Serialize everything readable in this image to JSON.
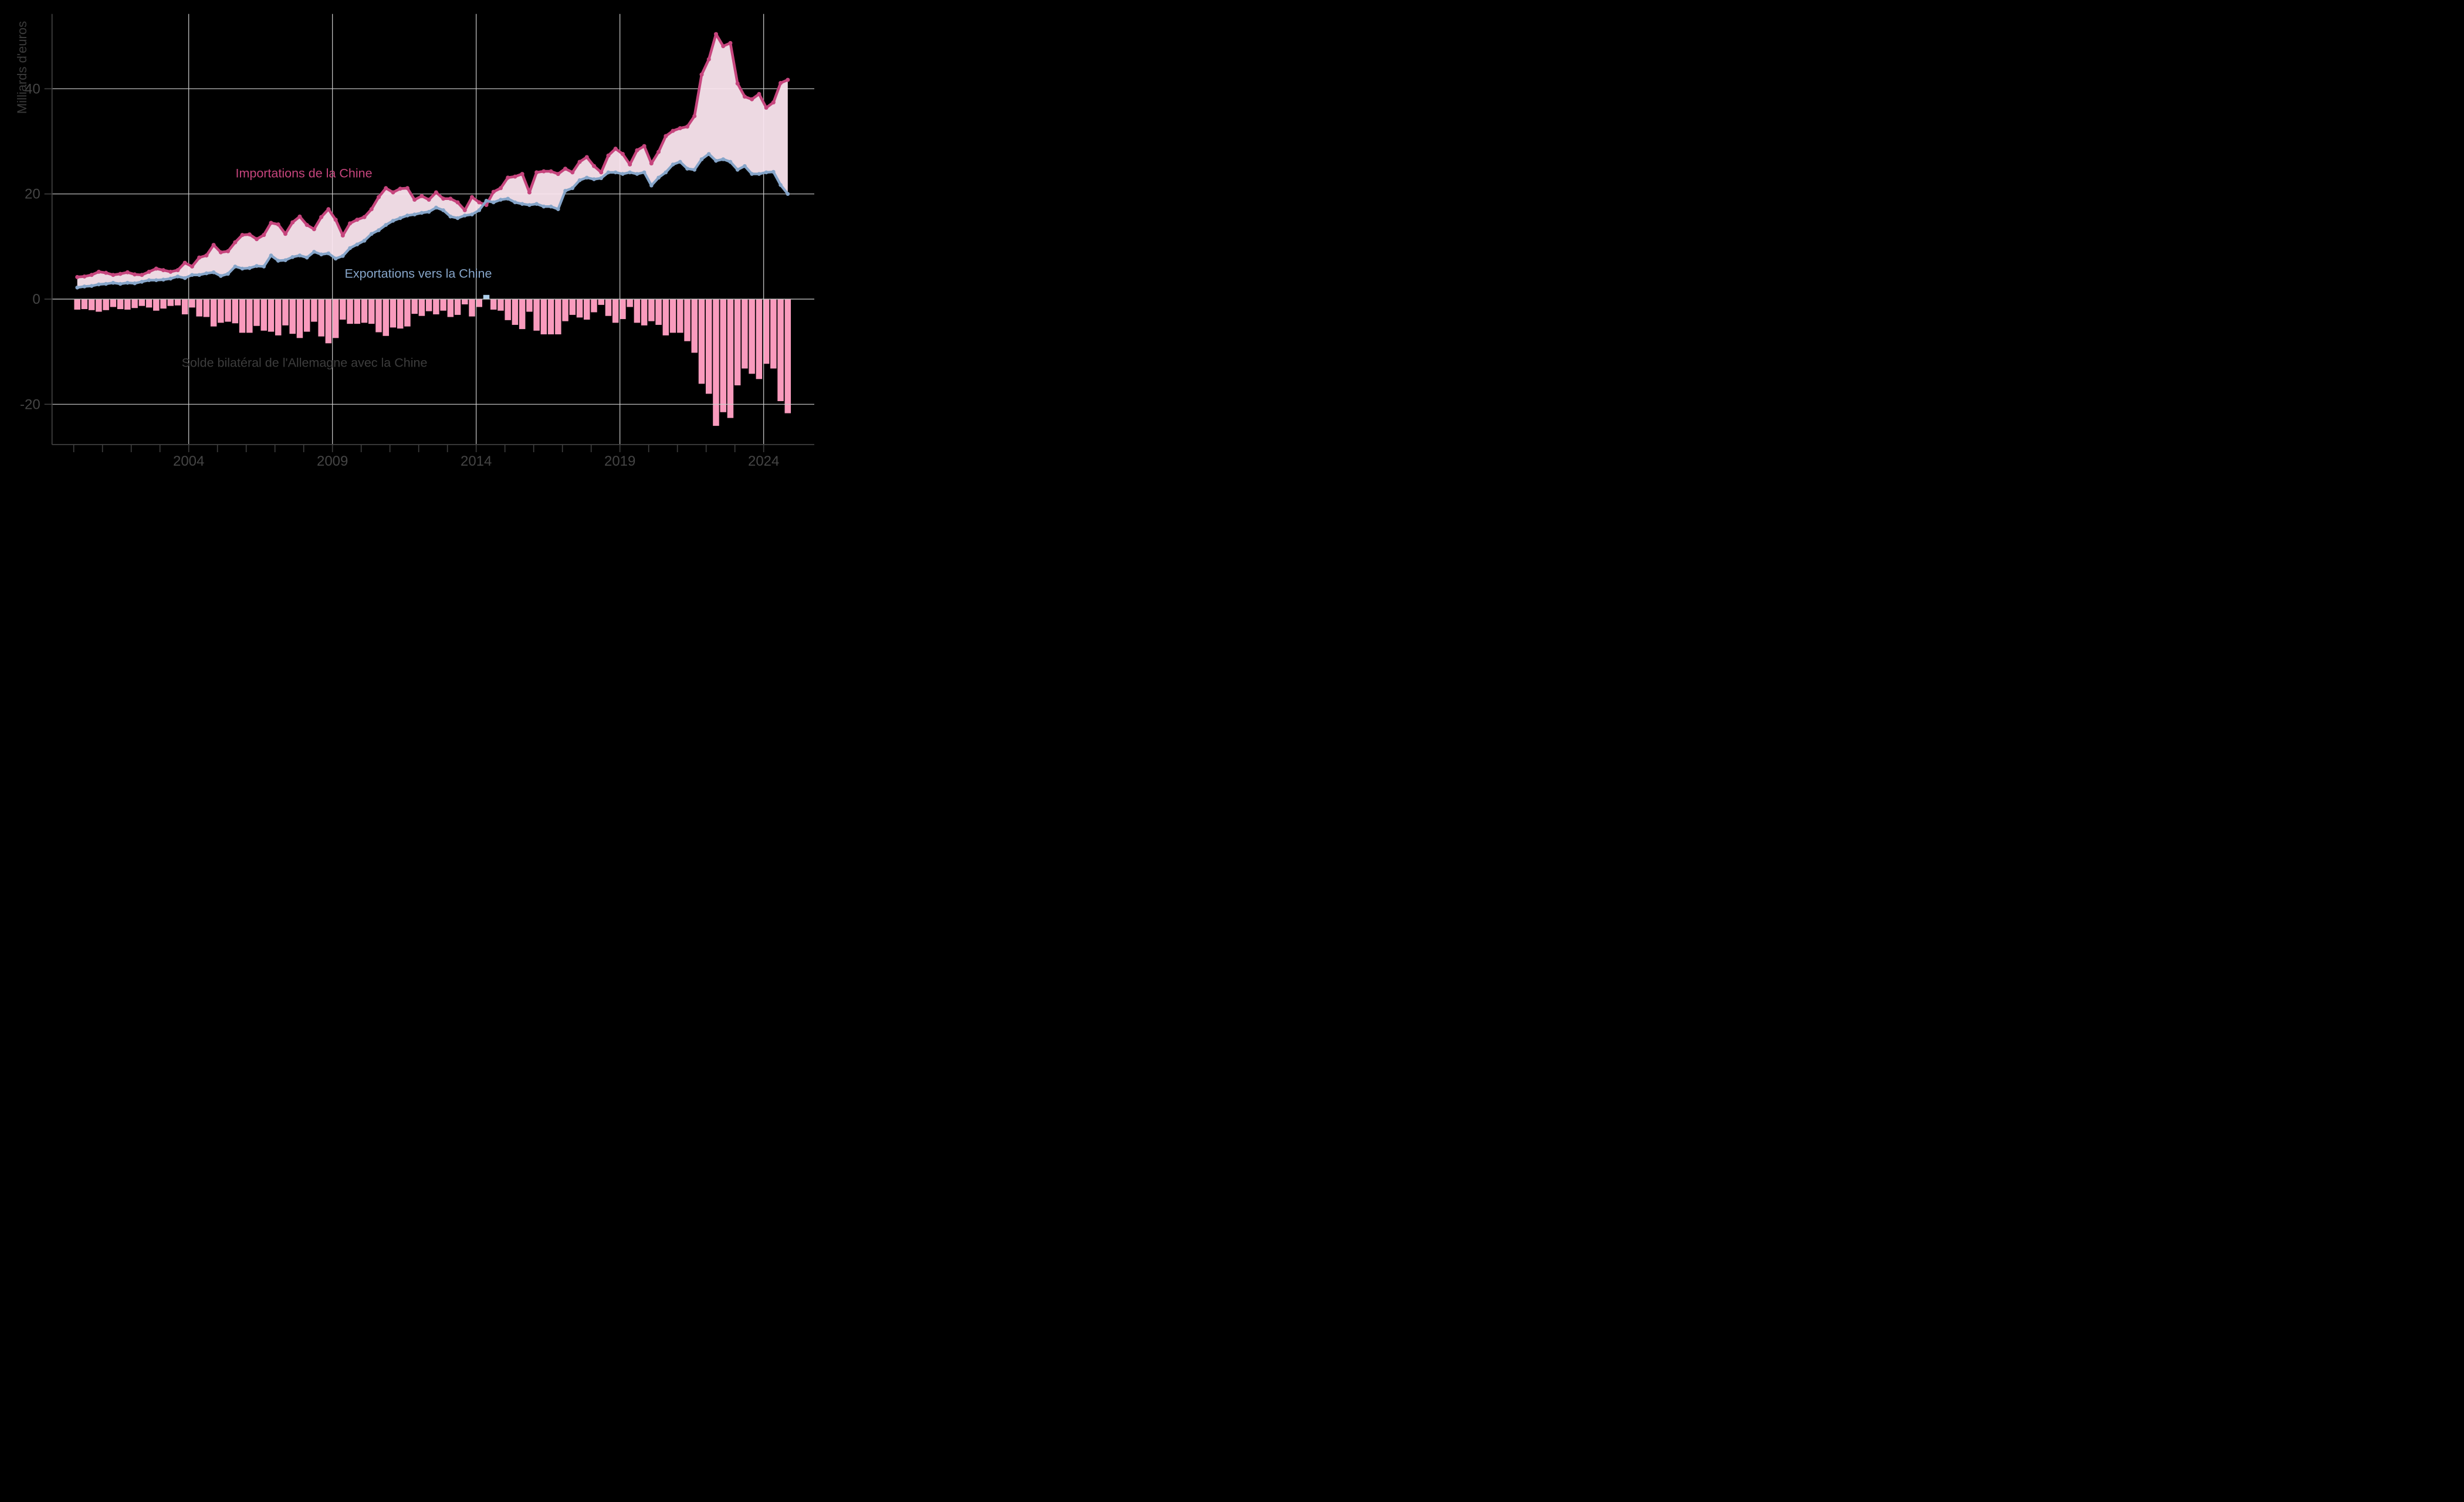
{
  "figure": {
    "background": "#000000",
    "grid_color": "#cfcfcf",
    "spine_color": "#3f3f3f",
    "tick_label_color": "#454545",
    "y_title": "Milliards d'euros",
    "y_title_color": "#3a3a3a"
  },
  "annotations": {
    "imports_label": "Importations de la Chine",
    "imports_color": "#c6457d",
    "exports_label": "Exportations vers la Chine",
    "exports_color": "#86a5c9",
    "solde_label": "Solde bilatéral de l'Allemagne avec la Chine",
    "solde_color": "#3d3d3d"
  },
  "chart_data": {
    "type": "line",
    "subtype": "two lines with shaded gap above, balance bars below zero",
    "unit": "Milliards d'euros",
    "frequency": "quarterly",
    "start_period": "2000Q1",
    "end_period": "2024Q4",
    "x_tick_years_labeled": [
      2004,
      2009,
      2014,
      2019,
      2024
    ],
    "x_tick_years_minor": [
      2000,
      2001,
      2002,
      2003,
      2004,
      2005,
      2006,
      2007,
      2008,
      2009,
      2010,
      2011,
      2012,
      2013,
      2014,
      2015,
      2016,
      2017,
      2018,
      2019,
      2020,
      2021,
      2022,
      2023,
      2024
    ],
    "ylim": [
      -27.7,
      54.2
    ],
    "y_ticks": [
      40,
      20,
      0,
      -20
    ],
    "y_tick_labels": [
      "40",
      "20",
      "0",
      "-20"
    ],
    "grid": true,
    "legend_position": "labels placed directly on chart",
    "series": [
      {
        "name": "Importations de la Chine",
        "color": "#c6457d",
        "point_color": "#c6457d",
        "values": [
          4.2,
          4.3,
          4.6,
          5.2,
          5.0,
          4.6,
          4.8,
          5.1,
          4.7,
          4.6,
          5.2,
          5.8,
          5.5,
          5.2,
          5.5,
          6.9,
          6.2,
          7.9,
          8.3,
          10.3,
          8.9,
          9.1,
          10.8,
          12.2,
          12.3,
          11.4,
          12.2,
          14.5,
          14.2,
          12.4,
          14.6,
          15.7,
          14.1,
          13.3,
          15.6,
          17.1,
          15.1,
          12.1,
          14.4,
          15.1,
          15.6,
          17.1,
          19.4,
          21.1,
          20.3,
          21.0,
          21.1,
          18.9,
          19.6,
          18.9,
          20.3,
          19.1,
          19.1,
          18.4,
          16.9,
          19.4,
          18.4,
          17.9,
          20.4,
          21.1,
          23.1,
          23.3,
          23.8,
          20.3,
          24.1,
          24.3,
          24.3,
          23.8,
          24.8,
          24.1,
          26.1,
          27.0,
          25.3,
          24.1,
          27.3,
          28.6,
          27.6,
          25.6,
          28.3,
          29.1,
          25.8,
          28.0,
          31.0,
          32.0,
          32.5,
          32.8,
          34.8,
          42.7,
          45.6,
          50.4,
          48.1,
          48.7,
          41.0,
          38.5,
          38.0,
          39.0,
          36.4,
          37.4,
          41.1,
          41.7
        ]
      },
      {
        "name": "Exportations vers la Chine",
        "color": "#86a5c9",
        "point_color": "#86a5c9",
        "values": [
          2.2,
          2.4,
          2.5,
          2.8,
          2.9,
          3.1,
          2.9,
          3.1,
          3.0,
          3.3,
          3.6,
          3.6,
          3.7,
          3.9,
          4.3,
          4.0,
          4.6,
          4.6,
          4.9,
          5.1,
          4.4,
          4.8,
          6.2,
          5.8,
          5.9,
          6.3,
          6.2,
          8.3,
          7.3,
          7.4,
          8.0,
          8.3,
          7.9,
          9.0,
          8.5,
          8.7,
          7.7,
          8.2,
          9.7,
          10.4,
          11.1,
          12.4,
          13.1,
          14.1,
          14.9,
          15.4,
          15.9,
          16.1,
          16.4,
          16.6,
          17.4,
          16.9,
          15.7,
          15.4,
          15.9,
          16.1,
          16.9,
          18.7,
          18.4,
          18.9,
          19.1,
          18.4,
          18.1,
          17.9,
          18.1,
          17.6,
          17.6,
          17.1,
          20.6,
          21.1,
          22.6,
          23.1,
          22.8,
          23.0,
          24.1,
          24.1,
          23.8,
          24.1,
          23.8,
          24.1,
          21.6,
          23.1,
          24.1,
          25.6,
          26.1,
          24.8,
          24.6,
          26.6,
          27.6,
          26.3,
          26.6,
          26.1,
          24.6,
          25.3,
          23.8,
          23.8,
          24.1,
          24.2,
          21.7,
          20.0
        ]
      },
      {
        "name": "Solde bilatéral de l'Allemagne avec la Chine",
        "type": "bar",
        "color_negative": "#f99bbd",
        "color_positive": "#aecfec",
        "values": [
          -2.0,
          -1.9,
          -2.1,
          -2.4,
          -2.1,
          -1.5,
          -1.9,
          -2.0,
          -1.7,
          -1.3,
          -1.6,
          -2.2,
          -1.8,
          -1.3,
          -1.2,
          -2.9,
          -1.6,
          -3.3,
          -3.4,
          -5.2,
          -4.5,
          -4.3,
          -4.6,
          -6.4,
          -6.4,
          -5.1,
          -6.0,
          -6.2,
          -6.9,
          -5.0,
          -6.6,
          -7.4,
          -6.2,
          -4.3,
          -7.1,
          -8.4,
          -7.4,
          -3.9,
          -4.7,
          -4.7,
          -4.5,
          -4.7,
          -6.3,
          -7.0,
          -5.4,
          -5.6,
          -5.2,
          -2.8,
          -3.2,
          -2.3,
          -2.9,
          -2.2,
          -3.4,
          -3.0,
          -1.0,
          -3.3,
          -1.5,
          0.8,
          -2.0,
          -2.2,
          -4.0,
          -4.9,
          -5.7,
          -2.4,
          -6.0,
          -6.7,
          -6.7,
          -6.7,
          -4.2,
          -3.0,
          -3.5,
          -3.9,
          -2.5,
          -1.1,
          -3.2,
          -4.5,
          -3.8,
          -1.5,
          -4.5,
          -5.0,
          -4.2,
          -4.9,
          -6.9,
          -6.4,
          -6.4,
          -8.0,
          -10.2,
          -16.1,
          -18.0,
          -24.1,
          -21.5,
          -22.6,
          -16.4,
          -13.2,
          -14.2,
          -15.2,
          -12.3,
          -13.2,
          -19.4,
          -21.7
        ]
      }
    ],
    "area_fill": {
      "between": [
        "Importations de la Chine",
        "Exportations vers la Chine"
      ],
      "color": "#fce7f0"
    }
  }
}
